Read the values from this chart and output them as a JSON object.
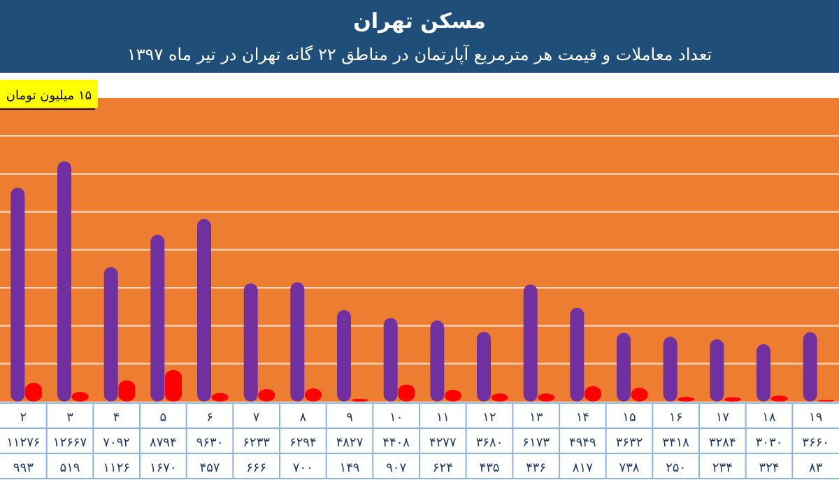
{
  "chart_data": {
    "type": "bar",
    "title": "مسکن تهران",
    "subtitle": "تعداد معاملات و قیمت هر مترمربع آپارتمان در مناطق ۲۲ گانه تهران در تیر ماه ۱۳۹۷",
    "categories": [
      "۲",
      "۳",
      "۴",
      "۵",
      "۶",
      "۷",
      "۸",
      "۹",
      "۱۰",
      "۱۱",
      "۱۲",
      "۱۳",
      "۱۴",
      "۱۵",
      "۱۶",
      "۱۷",
      "۱۸",
      "۱۹"
    ],
    "series": [
      {
        "color": "#7030a0",
        "values": [
          11276,
          12667,
          7092,
          8794,
          9630,
          6233,
          6294,
          4827,
          4408,
          4277,
          3680,
          6173,
          4949,
          3632,
          3418,
          3284,
          3030,
          3660
        ],
        "value_labels": [
          "۱۱۲۷۶",
          "۱۲۶۶۷",
          "۷۰۹۲",
          "۸۷۹۴",
          "۹۶۳۰",
          "۶۲۳۳",
          "۶۲۹۴",
          "۴۸۲۷",
          "۴۴۰۸",
          "۴۲۷۷",
          "۳۶۸۰",
          "۶۱۷۳",
          "۴۹۴۹",
          "۳۶۳۲",
          "۳۴۱۸",
          "۳۲۸۴",
          "۳۰۳۰",
          "۳۶۶۰"
        ]
      },
      {
        "color": "#ff0000",
        "values": [
          993,
          519,
          1126,
          1670,
          457,
          666,
          700,
          149,
          907,
          624,
          435,
          436,
          817,
          738,
          250,
          234,
          324,
          83
        ],
        "value_labels": [
          "۹۹۳",
          "۵۱۹",
          "۱۱۲۶",
          "۱۶۷۰",
          "۴۵۷",
          "۶۶۶",
          "۷۰۰",
          "۱۴۹",
          "۹۰۷",
          "۶۲۴",
          "۴۳۵",
          "۴۳۶",
          "۸۱۷",
          "۷۳۸",
          "۲۵۰",
          "۲۳۴",
          "۳۲۴",
          "۸۳"
        ]
      }
    ],
    "ylim": [
      0,
      16000
    ],
    "yticks": [
      {
        "value": 2000,
        "label": null
      },
      {
        "value": 4000,
        "label": null
      },
      {
        "value": 6000,
        "label": null
      },
      {
        "value": 8000,
        "label": null
      },
      {
        "value": 10000,
        "label": null
      },
      {
        "value": 12000,
        "label": null
      },
      {
        "value": 14000,
        "label": null
      }
    ],
    "grid": "y",
    "annotations": [
      "۱۵ میلیون تومان"
    ]
  }
}
